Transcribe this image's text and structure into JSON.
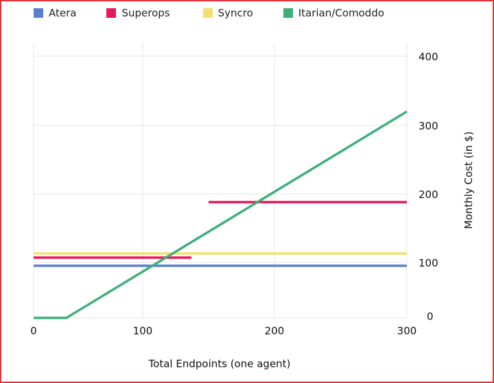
{
  "chart_data": {
    "type": "line",
    "title": "",
    "xlabel": "Total Endpoints (one agent)",
    "ylabel": "Monthly Cost (in $)",
    "x_ticks": [
      0,
      100,
      200,
      300
    ],
    "y_ticks": [
      0,
      100,
      200,
      300,
      400
    ],
    "xlim": [
      0,
      300
    ],
    "ylim": [
      0,
      400
    ],
    "y_axis_side": "right",
    "grid": true,
    "legend_position": "top",
    "series": [
      {
        "name": "Atera",
        "color": "#5b7fcf",
        "segments": [
          [
            [
              0,
              94
            ],
            [
              300,
              94
            ]
          ]
        ]
      },
      {
        "name": "Superops",
        "color": "#e8175d",
        "segments": [
          [
            [
              0,
              107
            ],
            [
              137,
              107
            ]
          ],
          [
            [
              150,
              188
            ],
            [
              300,
              188
            ]
          ]
        ]
      },
      {
        "name": "Syncro",
        "color": "#f5de6e",
        "segments": [
          [
            [
              0,
              113
            ],
            [
              300,
              113
            ]
          ]
        ]
      },
      {
        "name": "Itarian/Comoddo",
        "color": "#3faf7a",
        "segments": [
          [
            [
              0,
              0
            ],
            [
              30,
              0
            ],
            [
              300,
              320
            ]
          ]
        ]
      }
    ]
  }
}
